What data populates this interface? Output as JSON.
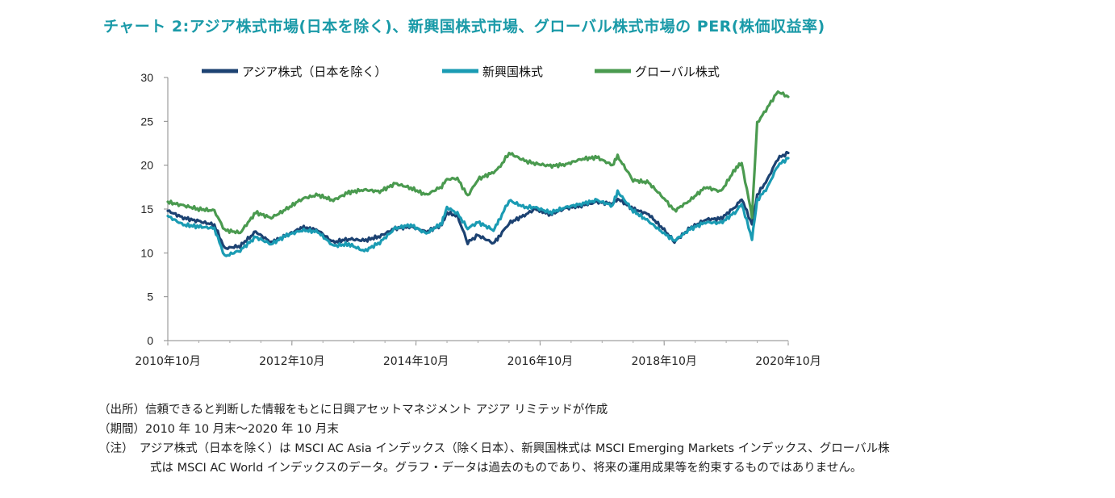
{
  "title": "チャート 2:アジア株式市場(日本を除く)、新興国株式市場、グローバル株式市場の PER(株価収益率)",
  "chart_data": {
    "type": "line",
    "title": "",
    "xlabel": "",
    "ylabel": "",
    "ylim": [
      0,
      30
    ],
    "y_ticks": [
      "0",
      "5",
      "10",
      "15",
      "20",
      "25",
      "30"
    ],
    "x_tick_labels": [
      "2010年10月",
      "2012年10月",
      "2014年10月",
      "2016年10月",
      "2018年10月",
      "2020年10月"
    ],
    "x_range": [
      "2010-10",
      "2020-10"
    ],
    "grid": false,
    "legend_position": "top",
    "x": [
      "2010-10",
      "2011-01",
      "2011-04",
      "2011-07",
      "2011-09",
      "2011-12",
      "2012-03",
      "2012-06",
      "2012-09",
      "2012-12",
      "2013-03",
      "2013-06",
      "2013-09",
      "2013-12",
      "2014-03",
      "2014-06",
      "2014-09",
      "2014-12",
      "2015-03",
      "2015-04",
      "2015-06",
      "2015-08",
      "2015-10",
      "2016-01",
      "2016-02",
      "2016-04",
      "2016-07",
      "2016-09",
      "2016-12",
      "2017-03",
      "2017-06",
      "2017-09",
      "2017-12",
      "2018-01",
      "2018-04",
      "2018-07",
      "2018-10",
      "2018-12",
      "2019-03",
      "2019-06",
      "2019-09",
      "2019-12",
      "2020-01",
      "2020-03",
      "2020-04",
      "2020-06",
      "2020-08",
      "2020-10"
    ],
    "series": [
      {
        "name": "アジア株式（日本を除く）",
        "color": "#1c4272",
        "values": [
          14.8,
          14.0,
          13.6,
          13.2,
          10.5,
          10.8,
          12.4,
          11.2,
          12.0,
          12.9,
          12.6,
          11.2,
          11.6,
          11.4,
          11.9,
          12.8,
          13.0,
          12.4,
          13.2,
          14.6,
          14.2,
          11.2,
          12.0,
          11.1,
          11.8,
          13.4,
          14.3,
          15.0,
          14.4,
          15.1,
          15.4,
          15.8,
          15.6,
          16.2,
          15.0,
          14.4,
          12.6,
          11.3,
          12.8,
          13.8,
          13.9,
          15.4,
          16.2,
          13.2,
          16.6,
          18.4,
          20.8,
          21.4
        ]
      },
      {
        "name": "新興国株式",
        "color": "#1a9bb3",
        "values": [
          14.2,
          13.2,
          13.0,
          12.8,
          9.6,
          10.3,
          11.8,
          11.0,
          12.0,
          12.6,
          12.4,
          10.8,
          11.0,
          10.2,
          11.2,
          12.8,
          13.2,
          12.2,
          13.4,
          15.2,
          14.5,
          12.8,
          13.5,
          12.6,
          13.6,
          16.0,
          15.2,
          15.2,
          14.6,
          15.2,
          15.6,
          16.0,
          15.4,
          17.0,
          14.8,
          13.6,
          12.2,
          11.4,
          12.7,
          13.5,
          13.4,
          14.8,
          15.6,
          11.6,
          16.0,
          17.5,
          20.0,
          20.8
        ]
      },
      {
        "name": "グローバル株式",
        "color": "#4a9a4f",
        "values": [
          15.8,
          15.4,
          15.0,
          14.8,
          12.6,
          12.3,
          14.6,
          14.0,
          15.0,
          16.2,
          16.6,
          16.0,
          16.9,
          17.2,
          17.0,
          17.9,
          17.4,
          16.6,
          17.6,
          18.4,
          18.5,
          16.5,
          18.4,
          19.2,
          19.6,
          21.4,
          20.5,
          20.2,
          19.9,
          20.1,
          20.7,
          20.9,
          20.0,
          21.0,
          18.3,
          18.0,
          16.2,
          14.8,
          16.0,
          17.5,
          17.0,
          19.8,
          20.2,
          14.2,
          24.8,
          26.6,
          28.4,
          27.8
        ]
      }
    ]
  },
  "notes": [
    "（出所）信頼できると判断した情報をもとに日興アセットマネジメント アジア リミテッドが作成",
    "（期間）2010 年 10 月末～2020 年 10 月末",
    "（注）　アジア株式（日本を除く）は MSCI AC Asia インデックス（除く日本）、新興国株式は MSCI Emerging Markets インデックス、グローバル株",
    "式は MSCI AC World インデックスのデータ。グラフ・データは過去のものであり、将来の運用成果等を約束するものではありません。"
  ]
}
